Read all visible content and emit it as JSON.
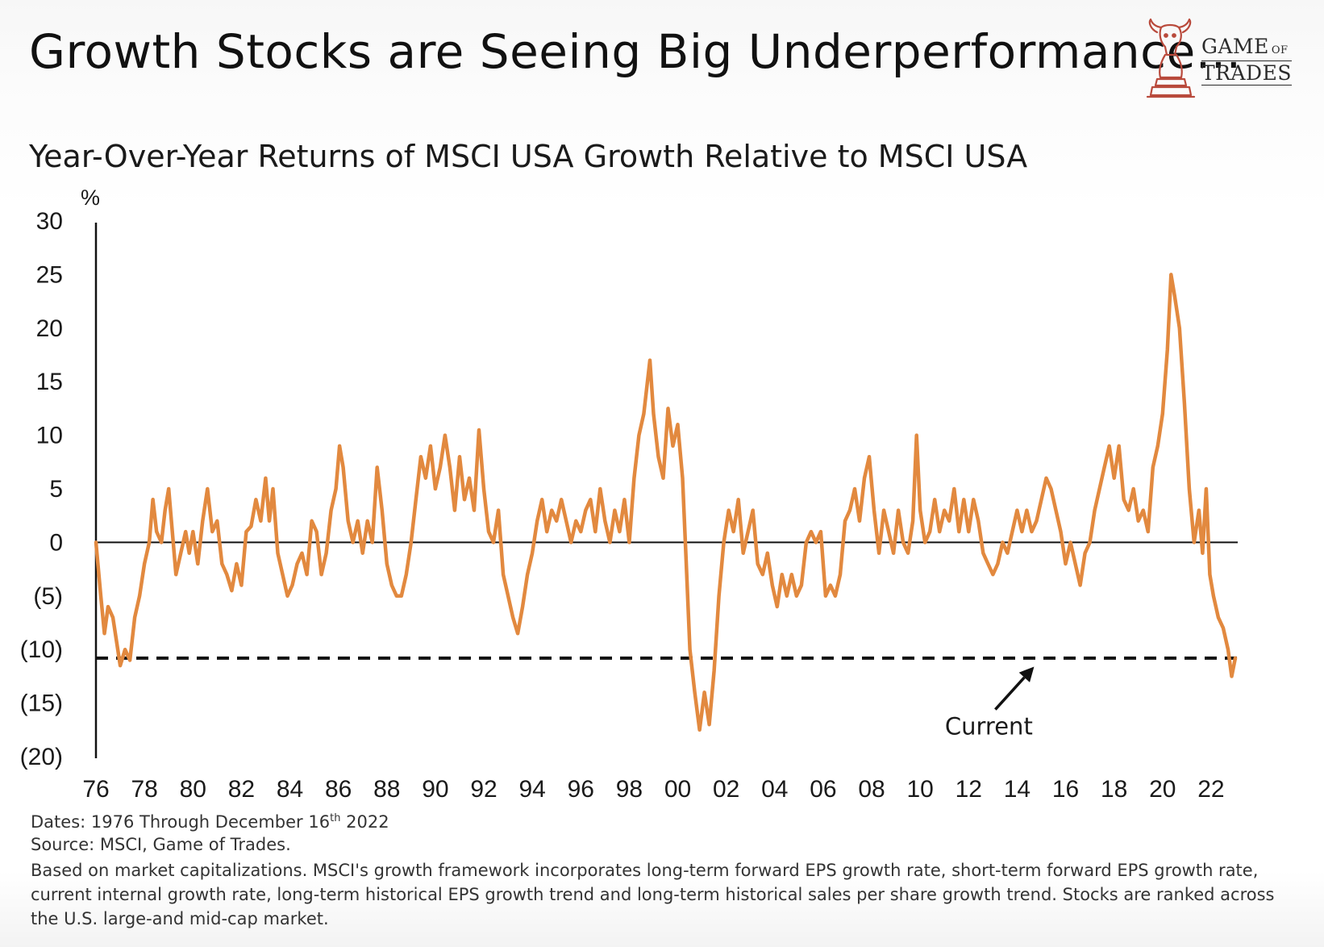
{
  "headline": "Growth Stocks are Seeing Big Underperformance...",
  "logo": {
    "line1": "GAME",
    "line1_small": "OF",
    "line2": "TRADES"
  },
  "footnotes": {
    "dates_prefix": "Dates: 1976 Through December 16",
    "dates_sup": "th",
    "dates_suffix": " 2022",
    "source": "Source: MSCI, Game of Trades.",
    "note": "Based on market capitalizations. MSCI's growth framework incorporates long-term forward EPS growth rate, short-term forward EPS growth rate, current internal growth rate, long-term historical EPS growth trend and long-term historical sales per share growth trend. Stocks are ranked across the U.S. large-and mid-cap market."
  },
  "colors": {
    "line": "#e2893f",
    "axis": "#111111",
    "text": "#1a1a1a",
    "logo": "#b94a3c"
  },
  "chart_data": {
    "type": "line",
    "title": "Year-Over-Year Returns of MSCI USA Growth Relative to MSCI USA",
    "ylabel": "%",
    "ylim": [
      -20,
      30
    ],
    "xlim": [
      1976,
      2023.1
    ],
    "y_ticks": [
      30,
      25,
      20,
      15,
      10,
      5,
      0,
      -5,
      -10,
      -15,
      -20
    ],
    "y_tick_labels": [
      "30",
      "25",
      "20",
      "15",
      "10",
      "5",
      "0",
      "(5)",
      "(10)",
      "(15)",
      "(20)"
    ],
    "x_ticks": [
      1976,
      1978,
      1980,
      1982,
      1984,
      1986,
      1988,
      1990,
      1992,
      1994,
      1996,
      1998,
      2000,
      2002,
      2004,
      2006,
      2008,
      2010,
      2012,
      2014,
      2016,
      2018,
      2020,
      2022
    ],
    "x_tick_labels": [
      "76",
      "78",
      "80",
      "82",
      "84",
      "86",
      "88",
      "90",
      "92",
      "94",
      "96",
      "98",
      "00",
      "02",
      "04",
      "06",
      "08",
      "10",
      "12",
      "14",
      "16",
      "18",
      "20",
      "22"
    ],
    "zero_line": 0,
    "current_level": -10.8,
    "annotation": {
      "text": "Current",
      "arrow_from": [
        2013.1,
        -15.6
      ],
      "arrow_to": [
        2014.7,
        -11.6
      ]
    },
    "series": [
      {
        "values": [
          [
            1976.0,
            0
          ],
          [
            1976.2,
            -5
          ],
          [
            1976.35,
            -8.5
          ],
          [
            1976.5,
            -6
          ],
          [
            1976.7,
            -7
          ],
          [
            1977.0,
            -11.5
          ],
          [
            1977.2,
            -10
          ],
          [
            1977.4,
            -11
          ],
          [
            1977.6,
            -7
          ],
          [
            1977.8,
            -5
          ],
          [
            1978.0,
            -2
          ],
          [
            1978.2,
            0
          ],
          [
            1978.35,
            4
          ],
          [
            1978.5,
            1
          ],
          [
            1978.7,
            0
          ],
          [
            1978.85,
            3
          ],
          [
            1979.0,
            5
          ],
          [
            1979.15,
            1
          ],
          [
            1979.3,
            -3
          ],
          [
            1979.5,
            -1
          ],
          [
            1979.7,
            1
          ],
          [
            1979.85,
            -1
          ],
          [
            1980.0,
            1
          ],
          [
            1980.2,
            -2
          ],
          [
            1980.4,
            2
          ],
          [
            1980.6,
            5
          ],
          [
            1980.8,
            1
          ],
          [
            1981.0,
            2
          ],
          [
            1981.2,
            -2
          ],
          [
            1981.4,
            -3
          ],
          [
            1981.6,
            -4.5
          ],
          [
            1981.8,
            -2
          ],
          [
            1982.0,
            -4
          ],
          [
            1982.2,
            1
          ],
          [
            1982.4,
            1.5
          ],
          [
            1982.6,
            4
          ],
          [
            1982.8,
            2
          ],
          [
            1983.0,
            6
          ],
          [
            1983.15,
            2
          ],
          [
            1983.3,
            5
          ],
          [
            1983.5,
            -1
          ],
          [
            1983.7,
            -3
          ],
          [
            1983.9,
            -5
          ],
          [
            1984.1,
            -4
          ],
          [
            1984.3,
            -2
          ],
          [
            1984.5,
            -1
          ],
          [
            1984.7,
            -3
          ],
          [
            1984.9,
            2
          ],
          [
            1985.1,
            1
          ],
          [
            1985.3,
            -3
          ],
          [
            1985.5,
            -1
          ],
          [
            1985.7,
            3
          ],
          [
            1985.9,
            5
          ],
          [
            1986.05,
            9
          ],
          [
            1986.2,
            7
          ],
          [
            1986.4,
            2
          ],
          [
            1986.6,
            0
          ],
          [
            1986.8,
            2
          ],
          [
            1987.0,
            -1
          ],
          [
            1987.2,
            2
          ],
          [
            1987.4,
            0
          ],
          [
            1987.6,
            7
          ],
          [
            1987.8,
            3
          ],
          [
            1988.0,
            -2
          ],
          [
            1988.2,
            -4
          ],
          [
            1988.4,
            -5
          ],
          [
            1988.6,
            -5
          ],
          [
            1988.8,
            -3
          ],
          [
            1989.0,
            0
          ],
          [
            1989.2,
            4
          ],
          [
            1989.4,
            8
          ],
          [
            1989.6,
            6
          ],
          [
            1989.8,
            9
          ],
          [
            1990.0,
            5
          ],
          [
            1990.2,
            7
          ],
          [
            1990.4,
            10
          ],
          [
            1990.6,
            7
          ],
          [
            1990.8,
            3
          ],
          [
            1991.0,
            8
          ],
          [
            1991.2,
            4
          ],
          [
            1991.4,
            6
          ],
          [
            1991.6,
            3
          ],
          [
            1991.8,
            10.5
          ],
          [
            1992.0,
            5
          ],
          [
            1992.2,
            1
          ],
          [
            1992.4,
            0
          ],
          [
            1992.6,
            3
          ],
          [
            1992.8,
            -3
          ],
          [
            1993.0,
            -5
          ],
          [
            1993.2,
            -7
          ],
          [
            1993.4,
            -8.5
          ],
          [
            1993.6,
            -6
          ],
          [
            1993.8,
            -3
          ],
          [
            1994.0,
            -1
          ],
          [
            1994.2,
            2
          ],
          [
            1994.4,
            4
          ],
          [
            1994.6,
            1
          ],
          [
            1994.8,
            3
          ],
          [
            1995.0,
            2
          ],
          [
            1995.2,
            4
          ],
          [
            1995.4,
            2
          ],
          [
            1995.6,
            0
          ],
          [
            1995.8,
            2
          ],
          [
            1996.0,
            1
          ],
          [
            1996.2,
            3
          ],
          [
            1996.4,
            4
          ],
          [
            1996.6,
            1
          ],
          [
            1996.8,
            5
          ],
          [
            1997.0,
            2
          ],
          [
            1997.2,
            0
          ],
          [
            1997.4,
            3
          ],
          [
            1997.6,
            1
          ],
          [
            1997.8,
            4
          ],
          [
            1998.0,
            0
          ],
          [
            1998.2,
            6
          ],
          [
            1998.4,
            10
          ],
          [
            1998.6,
            12
          ],
          [
            1998.85,
            17
          ],
          [
            1999.0,
            12
          ],
          [
            1999.2,
            8
          ],
          [
            1999.4,
            6
          ],
          [
            1999.6,
            12.5
          ],
          [
            1999.8,
            9
          ],
          [
            2000.0,
            11
          ],
          [
            2000.2,
            6
          ],
          [
            2000.35,
            -2
          ],
          [
            2000.5,
            -10
          ],
          [
            2000.7,
            -14
          ],
          [
            2000.9,
            -17.5
          ],
          [
            2001.1,
            -14
          ],
          [
            2001.3,
            -17
          ],
          [
            2001.5,
            -12
          ],
          [
            2001.7,
            -5
          ],
          [
            2001.9,
            0
          ],
          [
            2002.1,
            3
          ],
          [
            2002.3,
            1
          ],
          [
            2002.5,
            4
          ],
          [
            2002.7,
            -1
          ],
          [
            2002.9,
            1
          ],
          [
            2003.1,
            3
          ],
          [
            2003.3,
            -2
          ],
          [
            2003.5,
            -3
          ],
          [
            2003.7,
            -1
          ],
          [
            2003.9,
            -4
          ],
          [
            2004.1,
            -6
          ],
          [
            2004.3,
            -3
          ],
          [
            2004.5,
            -5
          ],
          [
            2004.7,
            -3
          ],
          [
            2004.9,
            -5
          ],
          [
            2005.1,
            -4
          ],
          [
            2005.3,
            0
          ],
          [
            2005.5,
            1
          ],
          [
            2005.7,
            0
          ],
          [
            2005.9,
            1
          ],
          [
            2006.1,
            -5
          ],
          [
            2006.3,
            -4
          ],
          [
            2006.5,
            -5
          ],
          [
            2006.7,
            -3
          ],
          [
            2006.9,
            2
          ],
          [
            2007.1,
            3
          ],
          [
            2007.3,
            5
          ],
          [
            2007.5,
            2
          ],
          [
            2007.7,
            6
          ],
          [
            2007.9,
            8
          ],
          [
            2008.1,
            3
          ],
          [
            2008.3,
            -1
          ],
          [
            2008.5,
            3
          ],
          [
            2008.7,
            1
          ],
          [
            2008.9,
            -1
          ],
          [
            2009.1,
            3
          ],
          [
            2009.3,
            0
          ],
          [
            2009.5,
            -1
          ],
          [
            2009.7,
            2
          ],
          [
            2009.85,
            10
          ],
          [
            2010.0,
            3
          ],
          [
            2010.2,
            0
          ],
          [
            2010.4,
            1
          ],
          [
            2010.6,
            4
          ],
          [
            2010.8,
            1
          ],
          [
            2011.0,
            3
          ],
          [
            2011.2,
            2
          ],
          [
            2011.4,
            5
          ],
          [
            2011.6,
            1
          ],
          [
            2011.8,
            4
          ],
          [
            2012.0,
            1
          ],
          [
            2012.2,
            4
          ],
          [
            2012.4,
            2
          ],
          [
            2012.6,
            -1
          ],
          [
            2012.8,
            -2
          ],
          [
            2013.0,
            -3
          ],
          [
            2013.2,
            -2
          ],
          [
            2013.4,
            0
          ],
          [
            2013.6,
            -1
          ],
          [
            2013.8,
            1
          ],
          [
            2014.0,
            3
          ],
          [
            2014.2,
            1
          ],
          [
            2014.4,
            3
          ],
          [
            2014.6,
            1
          ],
          [
            2014.8,
            2
          ],
          [
            2015.0,
            4
          ],
          [
            2015.2,
            6
          ],
          [
            2015.4,
            5
          ],
          [
            2015.6,
            3
          ],
          [
            2015.8,
            1
          ],
          [
            2016.0,
            -2
          ],
          [
            2016.2,
            0
          ],
          [
            2016.4,
            -2
          ],
          [
            2016.6,
            -4
          ],
          [
            2016.8,
            -1
          ],
          [
            2017.0,
            0
          ],
          [
            2017.2,
            3
          ],
          [
            2017.4,
            5
          ],
          [
            2017.6,
            7
          ],
          [
            2017.8,
            9
          ],
          [
            2018.0,
            6
          ],
          [
            2018.2,
            9
          ],
          [
            2018.4,
            4
          ],
          [
            2018.6,
            3
          ],
          [
            2018.8,
            5
          ],
          [
            2019.0,
            2
          ],
          [
            2019.2,
            3
          ],
          [
            2019.4,
            1
          ],
          [
            2019.6,
            7
          ],
          [
            2019.8,
            9
          ],
          [
            2020.0,
            12
          ],
          [
            2020.2,
            18
          ],
          [
            2020.35,
            25
          ],
          [
            2020.5,
            23
          ],
          [
            2020.7,
            20
          ],
          [
            2020.9,
            13
          ],
          [
            2021.1,
            5
          ],
          [
            2021.3,
            0
          ],
          [
            2021.5,
            3
          ],
          [
            2021.65,
            -1
          ],
          [
            2021.8,
            5
          ],
          [
            2021.95,
            -3
          ],
          [
            2022.1,
            -5
          ],
          [
            2022.3,
            -7
          ],
          [
            2022.5,
            -8
          ],
          [
            2022.7,
            -10
          ],
          [
            2022.85,
            -12.5
          ],
          [
            2023.0,
            -10.8
          ]
        ]
      }
    ]
  }
}
